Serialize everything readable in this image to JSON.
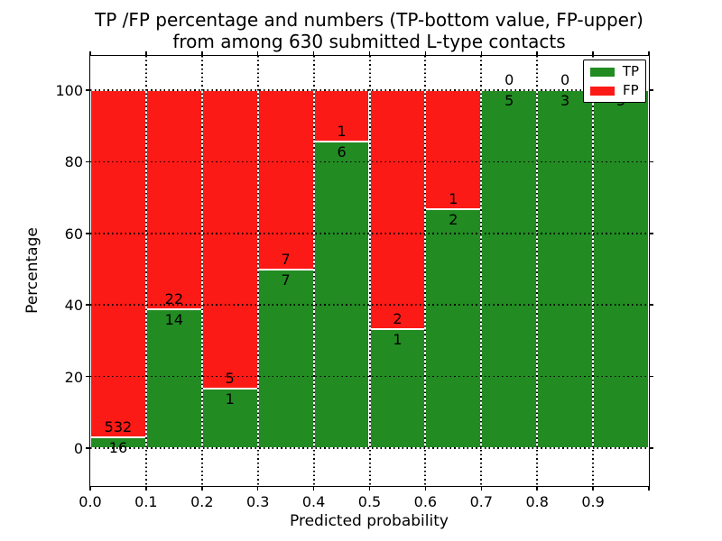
{
  "title": {
    "line1": "TP /FP percentage and numbers (TP-bottom value, FP-upper)",
    "line2": "from among 630 submitted L-type contacts"
  },
  "axes": {
    "xlabel": "Predicted probability",
    "ylabel": "Percentage",
    "xtick_labels": [
      "0.0",
      "0.1",
      "0.2",
      "0.3",
      "0.4",
      "0.5",
      "0.6",
      "0.7",
      "0.8",
      "0.9"
    ],
    "ytick_labels": [
      "0",
      "20",
      "40",
      "60",
      "80",
      "100"
    ],
    "ytick_values": [
      0,
      20,
      40,
      60,
      80,
      100
    ]
  },
  "legend": {
    "items": [
      {
        "label": "TP",
        "color": "#228b22"
      },
      {
        "label": "FP",
        "color": "#fc1a16"
      }
    ]
  },
  "chart_data": {
    "type": "bar",
    "stacked": true,
    "normalized": "percent",
    "title": "TP /FP percentage and numbers (TP-bottom value, FP-upper) from among 630 submitted L-type contacts",
    "xlabel": "Predicted probability",
    "ylabel": "Percentage",
    "total_contacts": 630,
    "xlim": [
      0.0,
      1.0
    ],
    "ylim": [
      -11,
      110
    ],
    "bin_width": 0.1,
    "grid": true,
    "legend_position": "upper right",
    "colors": {
      "tp": "#228b22",
      "fp": "#fc1a16"
    },
    "series": [
      {
        "name": "TP",
        "color": "#228b22",
        "counts": [
          16,
          14,
          1,
          7,
          6,
          1,
          2,
          5,
          3,
          5
        ]
      },
      {
        "name": "FP",
        "color": "#fc1a16",
        "counts": [
          532,
          22,
          5,
          7,
          1,
          2,
          1,
          0,
          0,
          0
        ]
      }
    ],
    "bins": [
      {
        "range": [
          0.0,
          0.1
        ],
        "tp": 16,
        "fp": 532,
        "tp_pct": 2.92,
        "fp_pct": 97.08
      },
      {
        "range": [
          0.1,
          0.2
        ],
        "tp": 14,
        "fp": 22,
        "tp_pct": 38.89,
        "fp_pct": 61.11
      },
      {
        "range": [
          0.2,
          0.3
        ],
        "tp": 1,
        "fp": 5,
        "tp_pct": 16.67,
        "fp_pct": 83.33
      },
      {
        "range": [
          0.3,
          0.4
        ],
        "tp": 7,
        "fp": 7,
        "tp_pct": 50.0,
        "fp_pct": 50.0
      },
      {
        "range": [
          0.4,
          0.5
        ],
        "tp": 6,
        "fp": 1,
        "tp_pct": 85.71,
        "fp_pct": 14.29
      },
      {
        "range": [
          0.5,
          0.6
        ],
        "tp": 1,
        "fp": 2,
        "tp_pct": 33.33,
        "fp_pct": 66.67
      },
      {
        "range": [
          0.6,
          0.7
        ],
        "tp": 2,
        "fp": 1,
        "tp_pct": 66.67,
        "fp_pct": 33.33
      },
      {
        "range": [
          0.7,
          0.8
        ],
        "tp": 5,
        "fp": 0,
        "tp_pct": 100.0,
        "fp_pct": 0.0
      },
      {
        "range": [
          0.8,
          0.9
        ],
        "tp": 3,
        "fp": 0,
        "tp_pct": 100.0,
        "fp_pct": 0.0
      },
      {
        "range": [
          0.9,
          1.0
        ],
        "tp": 5,
        "fp": 0,
        "tp_pct": 100.0,
        "fp_pct": 0.0
      }
    ]
  }
}
